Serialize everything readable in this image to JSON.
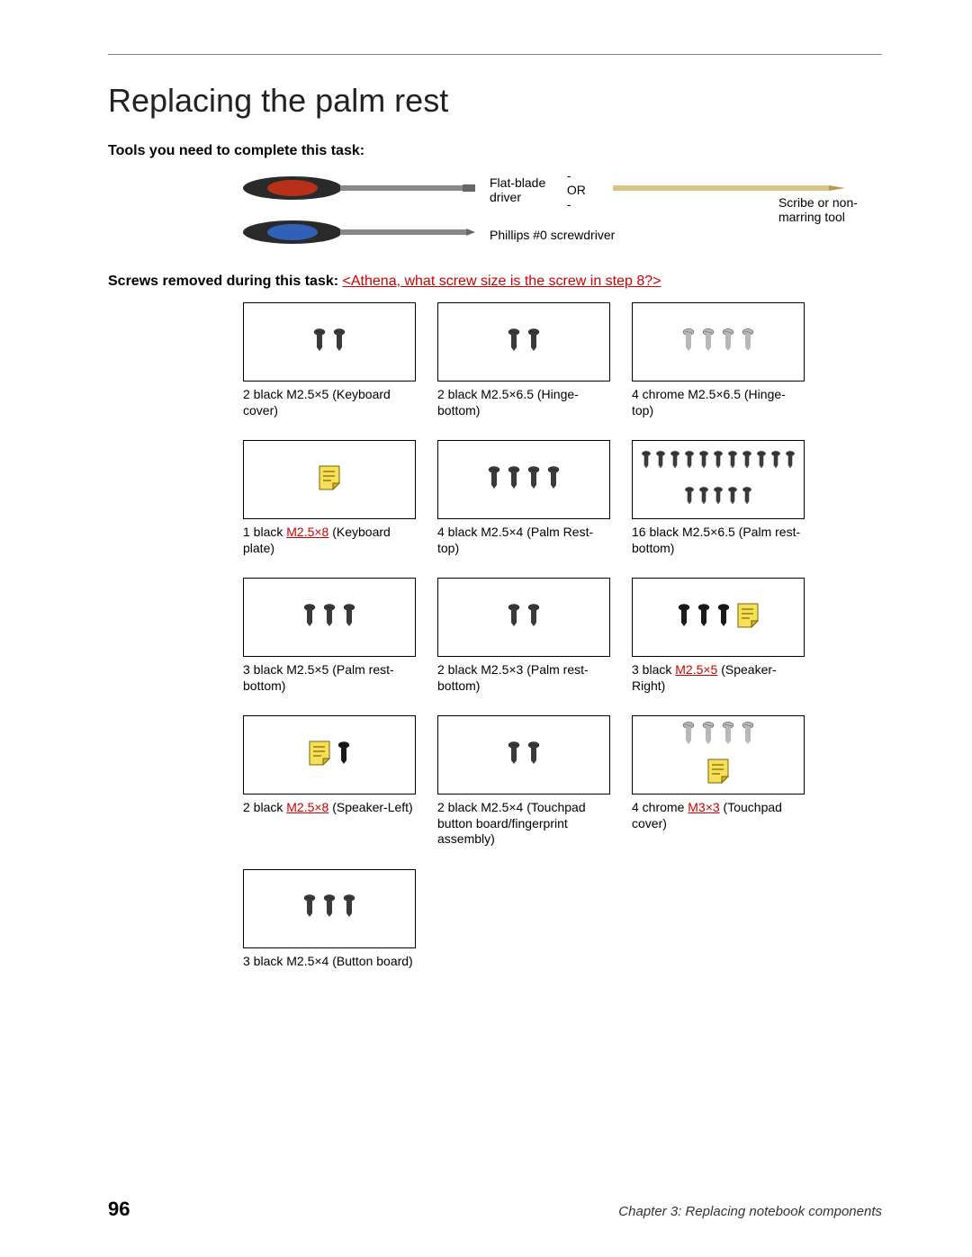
{
  "page": {
    "title": "Replacing the palm rest",
    "tools_heading": "Tools you need to complete this task:",
    "screws_heading_bold": "Screws removed during this task:",
    "screws_heading_link": "<Athena, what screw size is the screw in step 8?>",
    "page_number": "96",
    "chapter": "Chapter 3: Replacing notebook components"
  },
  "tools": {
    "flat_label": "Flat-blade driver",
    "or_label": "- OR -",
    "scribe_label": "Scribe or non-marring tool",
    "phillips_label": "Phillips #0 screwdriver",
    "handle_color_flat": "#b83018",
    "handle_color_phillips": "#3060b8",
    "scribe_color": "#d9c488"
  },
  "colors": {
    "screw_dark": "#3a3a3a",
    "screw_chrome": "#b8b8b8",
    "screw_black": "#1a1a1a",
    "note_fill": "#f5e05a",
    "note_fold": "#c9b830",
    "red": "#cc0000"
  },
  "cells": [
    {
      "count": 2,
      "screw_color": "dark",
      "has_note": false,
      "note_pos": "none",
      "caption_pre": "2 black ",
      "caption_red": "",
      "caption_post": "M2.5×5 (Keyboard cover)"
    },
    {
      "count": 2,
      "screw_color": "dark",
      "has_note": false,
      "note_pos": "none",
      "caption_pre": "2 black M2.5×6.5 (Hinge-bottom)",
      "caption_red": "",
      "caption_post": ""
    },
    {
      "count": 4,
      "screw_color": "chrome",
      "has_note": false,
      "note_pos": "none",
      "caption_pre": "4 chrome M2.5×6.5 (Hinge-top)",
      "caption_red": "",
      "caption_post": ""
    },
    {
      "count": 0,
      "screw_color": "dark",
      "has_note": true,
      "note_pos": "left",
      "caption_pre": "1 black ",
      "caption_red": "M2.5×8",
      "caption_post": " (Keyboard plate)"
    },
    {
      "count": 4,
      "screw_color": "dark",
      "has_note": false,
      "note_pos": "none",
      "caption_pre": "4 black M2.5×4 (Palm Rest-top)",
      "caption_red": "",
      "caption_post": ""
    },
    {
      "count": 16,
      "screw_color": "dark",
      "has_note": false,
      "note_pos": "none",
      "caption_pre": "16 black M2.5×6.5 (Palm rest-bottom)",
      "caption_red": "",
      "caption_post": ""
    },
    {
      "count": 3,
      "screw_color": "dark",
      "has_note": false,
      "note_pos": "none",
      "caption_pre": "3 black M2.5×5 (Palm rest-bottom)",
      "caption_red": "",
      "caption_post": ""
    },
    {
      "count": 2,
      "screw_color": "dark",
      "has_note": false,
      "note_pos": "none",
      "caption_pre": "2 black M2.5×3 (Palm rest-bottom)",
      "caption_red": "",
      "caption_post": ""
    },
    {
      "count": 3,
      "screw_color": "black",
      "has_note": true,
      "note_pos": "right",
      "caption_pre": "3 black ",
      "caption_red": "M2.5×5",
      "caption_post": " (Speaker-Right)"
    },
    {
      "count": 1,
      "screw_color": "black",
      "has_note": true,
      "note_pos": "left",
      "caption_pre": "2 black ",
      "caption_red": "M2.5×8",
      "caption_post": " (Speaker-Left)"
    },
    {
      "count": 2,
      "screw_color": "dark",
      "has_note": false,
      "note_pos": "none",
      "caption_pre": "2 black M2.5×4 (Touchpad button board/fingerprint assembly)",
      "caption_red": "",
      "caption_post": ""
    },
    {
      "count": 4,
      "screw_color": "chrome",
      "has_note": true,
      "note_pos": "below",
      "caption_pre": "4 chrome ",
      "caption_red": "M3×3",
      "caption_post": " (Touchpad cover)"
    },
    {
      "count": 3,
      "screw_color": "dark",
      "has_note": false,
      "note_pos": "none",
      "caption_pre": "3 black M2.5×4 (Button board)",
      "caption_red": "",
      "caption_post": ""
    }
  ]
}
